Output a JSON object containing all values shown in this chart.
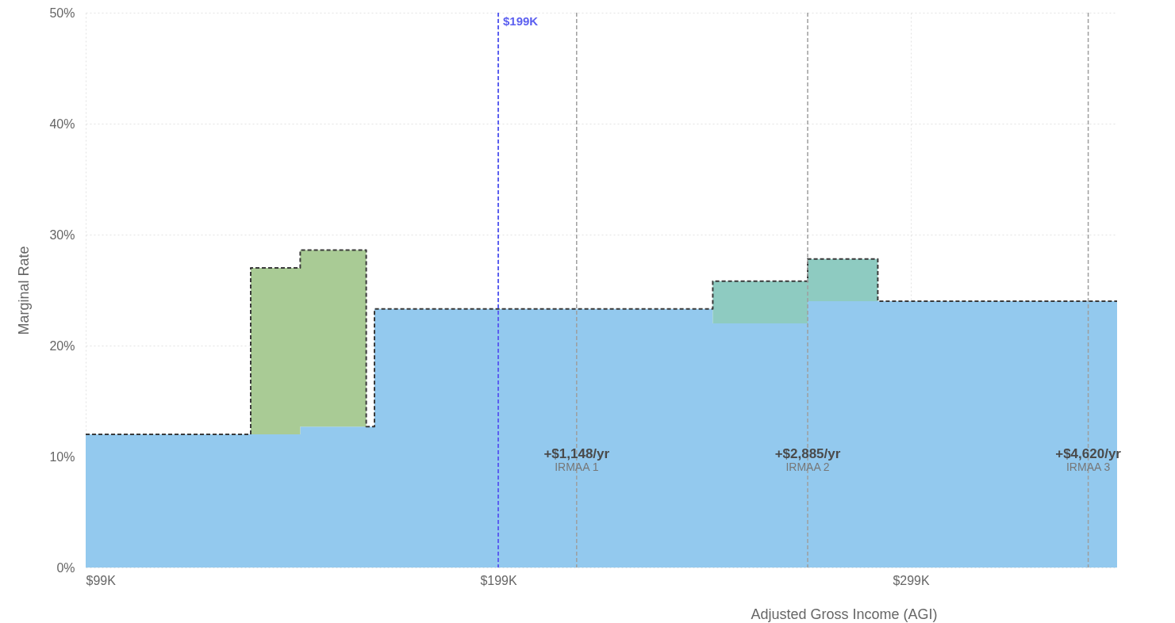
{
  "chart_data": {
    "type": "area",
    "xlabel": "Adjusted Gross Income (AGI)",
    "ylabel": "Marginal Rate",
    "x": [
      99,
      139,
      151,
      167,
      169,
      251,
      274,
      291,
      349
    ],
    "stacked": true,
    "series": [
      {
        "color": "#93c9ee",
        "values": [
          12,
          12,
          12.7,
          12.7,
          23.3,
          22,
          24,
          24,
          24
        ]
      },
      {
        "color": "#a9cb95",
        "values": [
          0,
          15,
          15.9,
          0,
          0,
          0,
          0,
          0,
          0
        ]
      },
      {
        "color": "#8ecbc1",
        "values": [
          null,
          null,
          null,
          null,
          null,
          3.8,
          3.8,
          0,
          null
        ]
      }
    ],
    "line_style": "dashed",
    "xlim": [
      99,
      349
    ],
    "xticks": [
      {
        "value": 99,
        "label": "$99K"
      },
      {
        "value": 199,
        "label": "$199K"
      },
      {
        "value": 299,
        "label": "$299K"
      }
    ],
    "ylim": [
      0,
      50
    ],
    "yticks": [
      {
        "value": 0,
        "label": "0%"
      },
      {
        "value": 10,
        "label": "10%"
      },
      {
        "value": 20,
        "label": "20%"
      },
      {
        "value": 30,
        "label": "30%"
      },
      {
        "value": 40,
        "label": "40%"
      },
      {
        "value": 50,
        "label": "50%"
      }
    ],
    "grid": true,
    "ref_lines": [
      {
        "axis": "x",
        "value": 199,
        "label": "$199K",
        "color": "#5b5ff0",
        "line_style": "dashed"
      },
      {
        "axis": "x",
        "value": 218,
        "color": "#9e9e9e",
        "line_style": "dashed"
      },
      {
        "axis": "x",
        "value": 274,
        "color": "#9e9e9e",
        "line_style": "dashed"
      },
      {
        "axis": "x",
        "value": 342,
        "color": "#9e9e9e",
        "line_style": "dashed"
      }
    ],
    "annotations": [
      {
        "text": "+$1,148/yr",
        "x": 218,
        "y": 10.2
      },
      {
        "text": "IRMAA 1",
        "x": 218,
        "y": 9
      },
      {
        "text": "+$2,885/yr",
        "x": 274,
        "y": 10.2
      },
      {
        "text": "IRMAA 2",
        "x": 274,
        "y": 9
      },
      {
        "text": "+$4,620/yr",
        "x": 342,
        "y": 10.2
      },
      {
        "text": "IRMAA 3",
        "x": 342,
        "y": 9
      }
    ]
  }
}
